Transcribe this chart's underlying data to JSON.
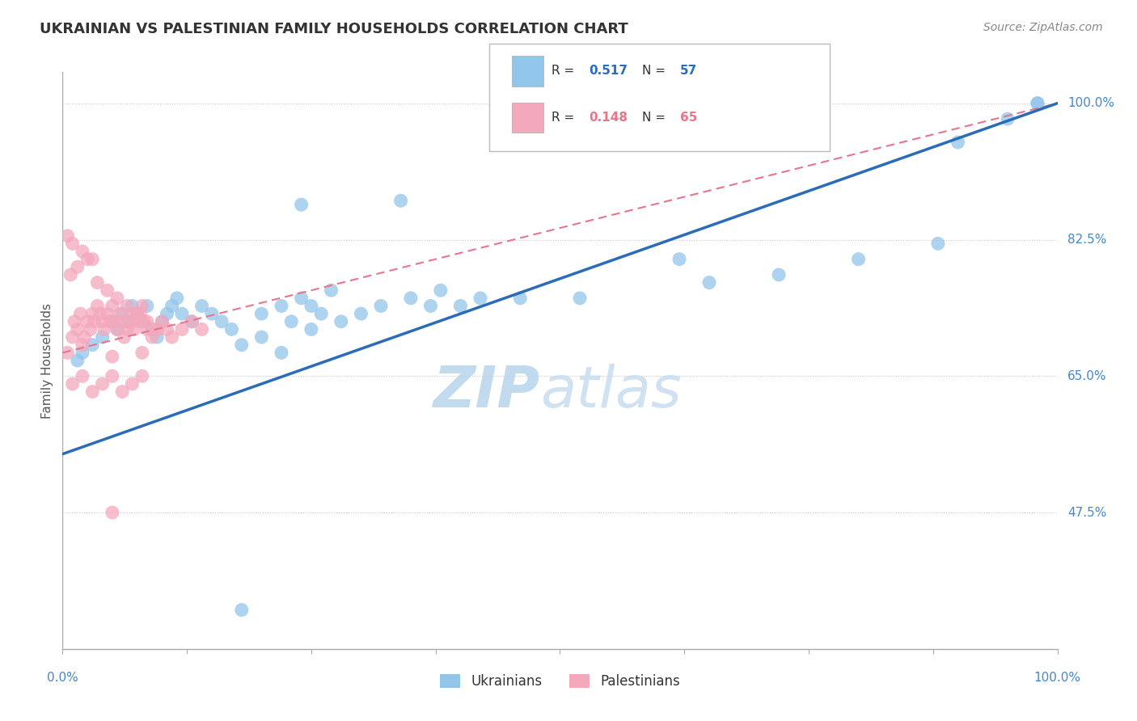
{
  "title": "UKRAINIAN VS PALESTINIAN FAMILY HOUSEHOLDS CORRELATION CHART",
  "source": "Source: ZipAtlas.com",
  "ylabel": "Family Households",
  "yticks": [
    47.5,
    65.0,
    82.5,
    100.0
  ],
  "ytick_labels": [
    "47.5%",
    "65.0%",
    "82.5%",
    "100.0%"
  ],
  "xmin": 0.0,
  "xmax": 100.0,
  "ymin": 30.0,
  "ymax": 104.0,
  "blue_color": "#92C5EA",
  "pink_color": "#F4A8BC",
  "blue_line_color": "#2B6CB8",
  "pink_line_color": "#E8758A",
  "axis_color": "#AAAAAA",
  "grid_color": "#C8C8C8",
  "tick_label_color": "#4488CC",
  "title_color": "#333333",
  "source_color": "#888888",
  "ylabel_color": "#555555",
  "watermark_color": "#C8DCF0",
  "blue_intercept": 55.0,
  "blue_slope": 0.45,
  "pink_intercept": 68.0,
  "pink_slope": 0.32,
  "ukrainians_x": [
    1.5,
    2.0,
    3.0,
    4.0,
    5.0,
    5.5,
    6.0,
    6.5,
    7.0,
    7.5,
    8.0,
    8.5,
    9.0,
    9.5,
    10.0,
    10.5,
    11.0,
    11.5,
    12.0,
    13.0,
    14.0,
    15.0,
    16.0,
    17.0,
    18.0,
    20.0,
    22.0,
    23.0,
    24.0,
    25.0,
    26.0,
    27.0,
    28.0,
    30.0,
    32.0,
    35.0,
    37.0,
    38.0,
    40.0,
    42.0,
    24.0,
    34.0,
    46.0,
    52.0,
    65.0,
    72.0,
    80.0,
    88.0,
    98.0,
    18.0,
    20.0,
    22.0,
    25.0,
    62.0,
    90.0,
    95.0,
    98.0
  ],
  "ukrainians_y": [
    67.0,
    68.0,
    69.0,
    70.0,
    72.0,
    71.0,
    73.0,
    72.0,
    74.0,
    73.0,
    72.0,
    74.0,
    71.0,
    70.0,
    72.0,
    73.0,
    74.0,
    75.0,
    73.0,
    72.0,
    74.0,
    73.0,
    72.0,
    71.0,
    35.0,
    73.0,
    74.0,
    72.0,
    75.0,
    74.0,
    73.0,
    76.0,
    72.0,
    73.0,
    74.0,
    75.0,
    74.0,
    76.0,
    74.0,
    75.0,
    87.0,
    87.5,
    75.0,
    75.0,
    77.0,
    78.0,
    80.0,
    82.0,
    100.0,
    69.0,
    70.0,
    68.0,
    71.0,
    80.0,
    95.0,
    98.0,
    100.0
  ],
  "palestinians_x": [
    0.5,
    1.0,
    1.2,
    1.5,
    1.8,
    2.0,
    2.2,
    2.5,
    2.8,
    3.0,
    3.2,
    3.5,
    3.8,
    4.0,
    4.2,
    4.5,
    4.8,
    5.0,
    5.2,
    5.5,
    5.8,
    6.0,
    6.2,
    6.5,
    6.8,
    7.0,
    7.2,
    7.5,
    7.8,
    8.0,
    8.2,
    8.5,
    9.0,
    9.5,
    10.0,
    10.5,
    11.0,
    12.0,
    13.0,
    14.0,
    0.8,
    1.5,
    2.5,
    3.5,
    4.5,
    5.5,
    6.5,
    7.5,
    8.5,
    9.5,
    1.0,
    2.0,
    3.0,
    4.0,
    5.0,
    6.0,
    7.0,
    8.0,
    0.5,
    1.0,
    2.0,
    3.0,
    5.0,
    8.0,
    5.0
  ],
  "palestinians_y": [
    68.0,
    70.0,
    72.0,
    71.0,
    73.0,
    69.0,
    70.0,
    72.0,
    71.0,
    73.0,
    72.0,
    74.0,
    73.0,
    72.0,
    71.0,
    73.0,
    72.0,
    74.0,
    72.0,
    71.0,
    73.0,
    72.0,
    70.0,
    71.0,
    72.0,
    73.0,
    71.0,
    72.0,
    73.0,
    74.0,
    72.0,
    71.0,
    70.0,
    71.0,
    72.0,
    71.0,
    70.0,
    71.0,
    72.0,
    71.0,
    78.0,
    79.0,
    80.0,
    77.0,
    76.0,
    75.0,
    74.0,
    73.0,
    72.0,
    71.0,
    64.0,
    65.0,
    63.0,
    64.0,
    65.0,
    63.0,
    64.0,
    65.0,
    83.0,
    82.0,
    81.0,
    80.0,
    47.5,
    68.0,
    67.5
  ]
}
